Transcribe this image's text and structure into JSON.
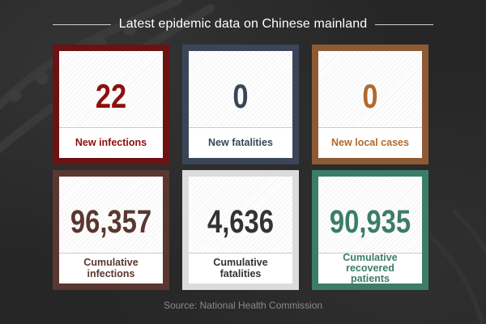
{
  "title": "Latest epidemic data on Chinese mainland",
  "source": "Source: National Health Commission",
  "colors": {
    "new_infections": "#6b1212",
    "new_fatalities": "#3a4658",
    "new_local_cases": "#8e5a34",
    "cumulative_infections": "#5a3730",
    "cumulative_fatalities": "#dcdcdc",
    "cumulative_recovered": "#3b7d69"
  },
  "cards": {
    "new_infections": {
      "value": "22",
      "label": "New infections"
    },
    "new_fatalities": {
      "value": "0",
      "label": "New fatalities"
    },
    "new_local_cases": {
      "value": "0",
      "label": "New local cases"
    },
    "cumulative_infections": {
      "value": "96,357",
      "label": "Cumulative infections"
    },
    "cumulative_fatalities": {
      "value": "4,636",
      "label": "Cumulative fatalities"
    },
    "cumulative_recovered": {
      "value": "90,935",
      "label": "Cumulative recovered patients"
    }
  }
}
